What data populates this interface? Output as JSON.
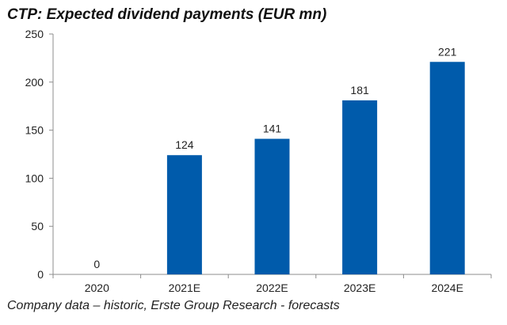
{
  "title": "CTP: Expected dividend payments (EUR mn)",
  "footer": "Company data – historic, Erste Group Research - forecasts",
  "colors": {
    "bar": "#005bab",
    "axis": "#8c8c8c"
  },
  "chart_data": {
    "type": "bar",
    "title": "CTP: Expected dividend payments (EUR mn)",
    "categories": [
      "2020",
      "2021E",
      "2022E",
      "2023E",
      "2024E"
    ],
    "values": [
      0,
      124,
      141,
      181,
      221
    ],
    "data_labels": [
      "0",
      "124",
      "141",
      "181",
      "221"
    ],
    "xlabel": "",
    "ylabel": "",
    "ylim": [
      0,
      250
    ],
    "yticks": [
      0,
      50,
      100,
      150,
      200,
      250
    ],
    "grid": false,
    "legend": null,
    "source": "Company data – historic, Erste Group Research - forecasts"
  }
}
